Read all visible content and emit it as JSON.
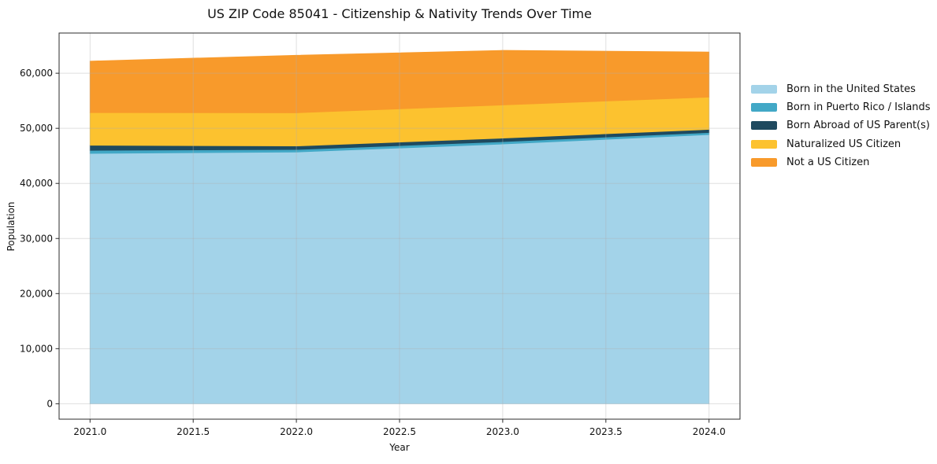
{
  "chart_data": {
    "type": "area",
    "stacked": true,
    "title": "US ZIP Code 85041 - Citizenship & Nativity Trends Over Time",
    "xlabel": "Year",
    "ylabel": "Population",
    "x": [
      2021,
      2022,
      2023,
      2024
    ],
    "series": [
      {
        "name": "Born in the United States",
        "color": "#a3d3e9",
        "values": [
          45450,
          45700,
          47150,
          48860
        ]
      },
      {
        "name": "Born in Puerto Rico / Islands",
        "color": "#42a8c6",
        "values": [
          550,
          450,
          430,
          380
        ]
      },
      {
        "name": "Born Abroad of US Parent(s)",
        "color": "#1f4a5f",
        "values": [
          930,
          640,
          640,
          570
        ]
      },
      {
        "name": "Naturalized US Citizen",
        "color": "#fcc22f",
        "values": [
          5920,
          6030,
          6020,
          5850
        ]
      },
      {
        "name": "Not a US Citizen",
        "color": "#f89a2b",
        "values": [
          9350,
          10450,
          9910,
          8190
        ]
      }
    ],
    "totals": [
      62200,
      63270,
      64150,
      63850
    ],
    "xlim": [
      2020.85,
      2024.15
    ],
    "ylim": [
      -2800,
      67300
    ],
    "xticks": {
      "values": [
        2021.0,
        2021.5,
        2022.0,
        2022.5,
        2023.0,
        2023.5,
        2024.0
      ],
      "labels": [
        "2021.0",
        "2021.5",
        "2022.0",
        "2022.5",
        "2023.0",
        "2023.5",
        "2024.0"
      ]
    },
    "yticks": {
      "values": [
        0,
        10000,
        20000,
        30000,
        40000,
        50000,
        60000
      ],
      "labels": [
        "0",
        "10,000",
        "20,000",
        "30,000",
        "40,000",
        "50,000",
        "60,000"
      ]
    },
    "grid": true,
    "legend_position": "right-outside",
    "legend_entries": [
      "Born in the United States",
      "Born in Puerto Rico / Islands",
      "Born Abroad of US Parent(s)",
      "Naturalized US Citizen",
      "Not a US Citizen"
    ],
    "style_colors": {
      "spine": "#2b2b2b",
      "tick": "#2b2b2b",
      "text": "#111111",
      "grid": "rgba(176,176,176,0.4)",
      "background": "#ffffff"
    }
  }
}
